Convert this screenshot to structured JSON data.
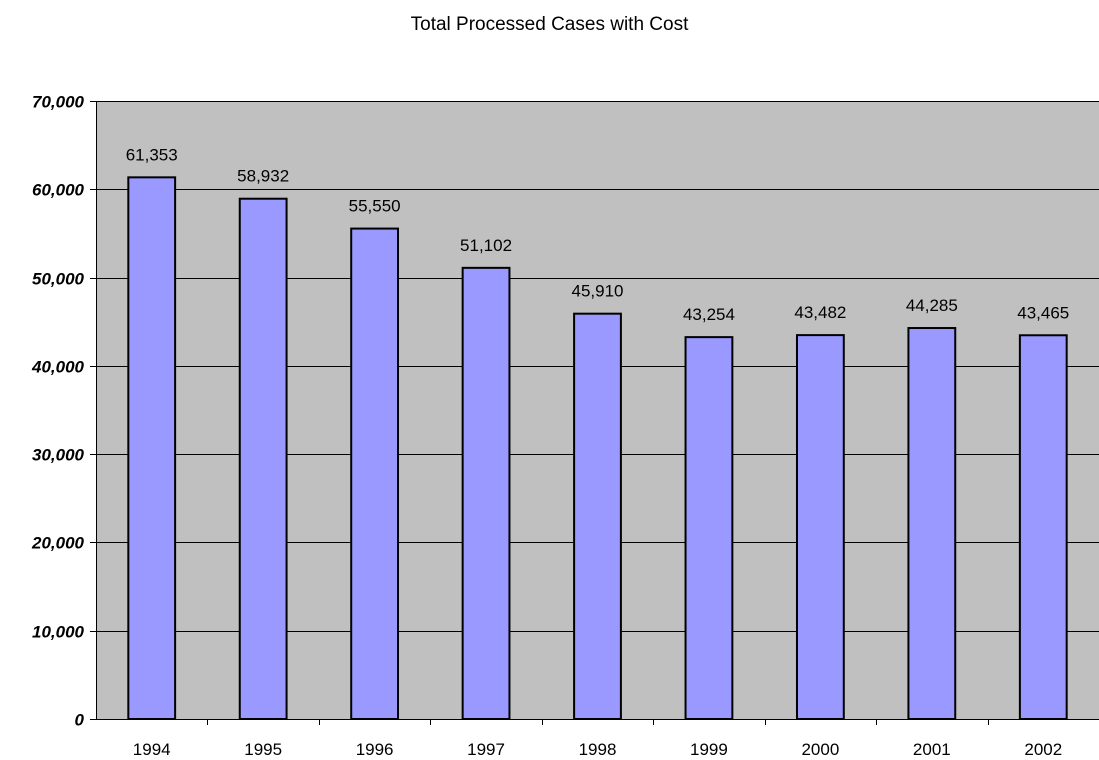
{
  "chart_data": {
    "type": "bar",
    "title": "Total Processed Cases with Cost",
    "xlabel": "",
    "ylabel": "",
    "categories": [
      "1994",
      "1995",
      "1996",
      "1997",
      "1998",
      "1999",
      "2000",
      "2001",
      "2002"
    ],
    "values": [
      61353,
      58932,
      55550,
      51102,
      45910,
      43254,
      43482,
      44285,
      43465
    ],
    "data_labels": [
      "61,353",
      "58,932",
      "55,550",
      "51,102",
      "45,910",
      "43,254",
      "43,482",
      "44,285",
      "43,465"
    ],
    "ylim": [
      0,
      70000
    ],
    "yticks": [
      0,
      10000,
      20000,
      30000,
      40000,
      50000,
      60000,
      70000
    ],
    "ytick_labels": [
      "0",
      "10,000",
      "20,000",
      "30,000",
      "40,000",
      "50,000",
      "60,000",
      "70,000"
    ],
    "grid": true,
    "colors": {
      "bar_fill": "#9999ff",
      "bar_stroke": "#000000",
      "plot_background": "#c0c0c0",
      "gridline": "#000000"
    }
  }
}
